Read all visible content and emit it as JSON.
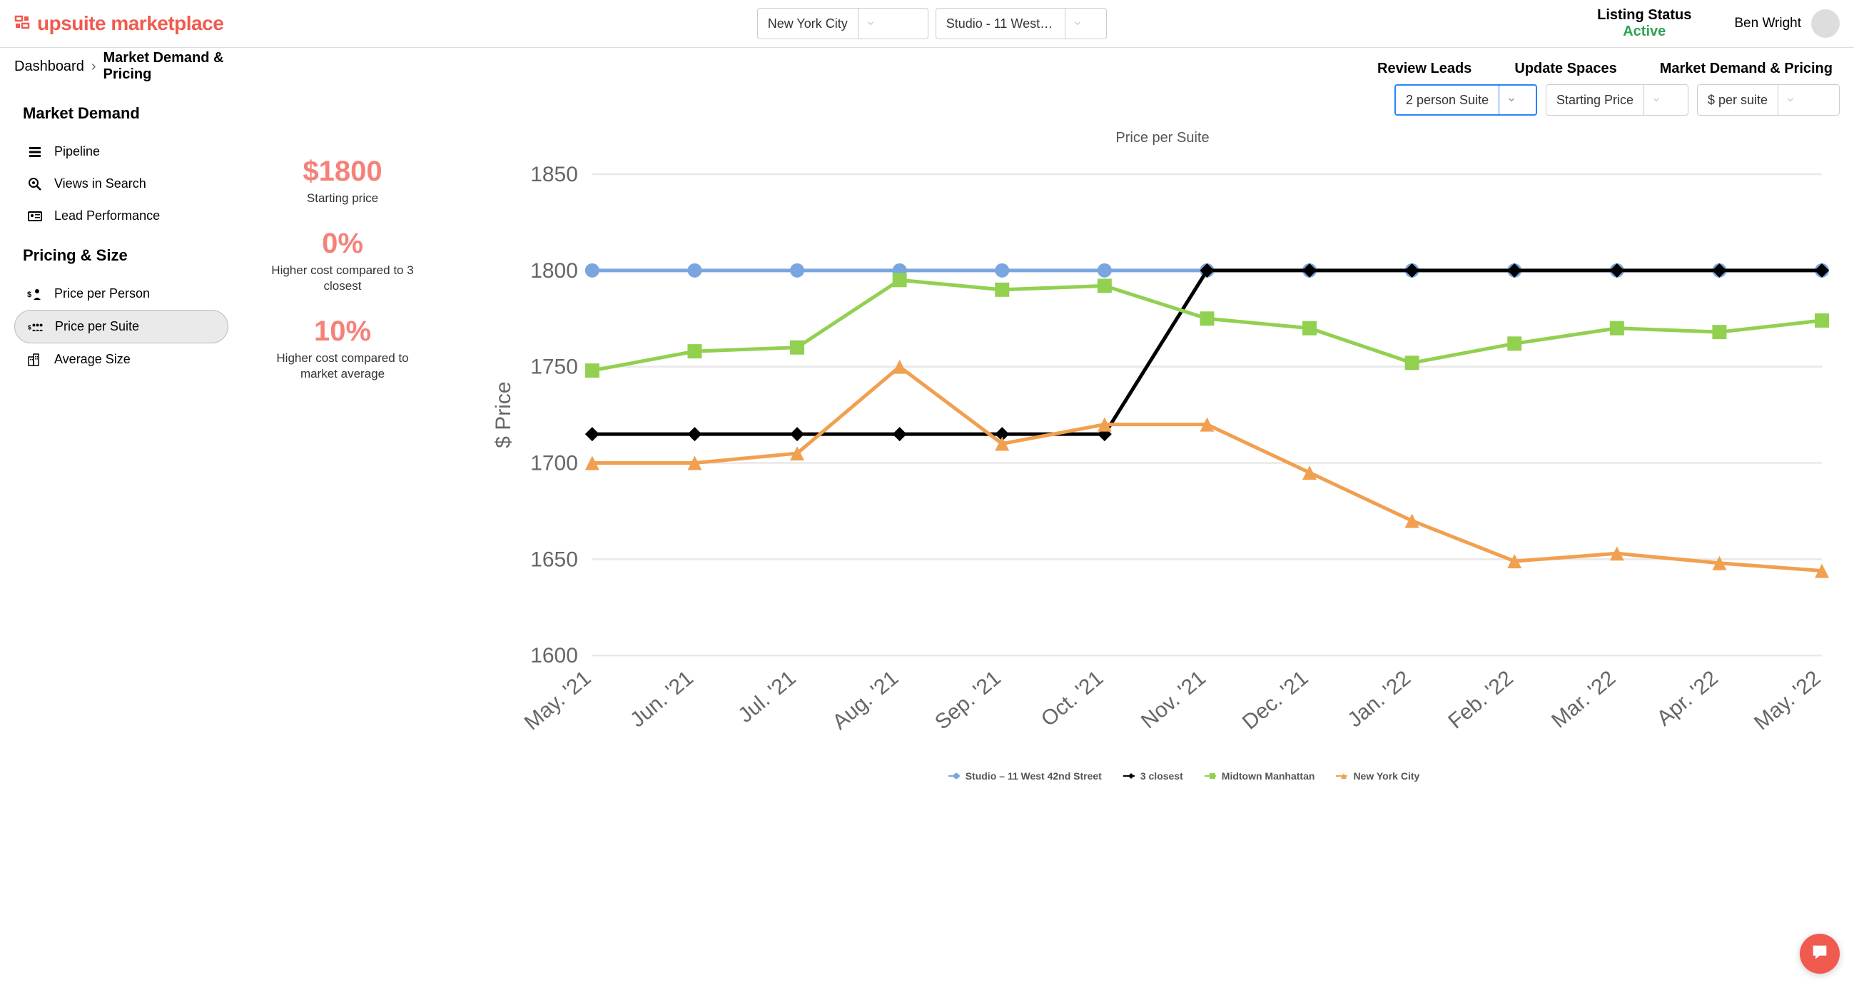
{
  "header": {
    "logo_text": "upsuite marketplace",
    "city_select": "New York City",
    "location_select": "Studio - 11 West 42n...",
    "listing_status_label": "Listing Status",
    "listing_status_value": "Active",
    "user_name": "Ben Wright"
  },
  "subnav": {
    "review_leads": "Review Leads",
    "update_spaces": "Update Spaces",
    "market_demand_pricing": "Market Demand & Pricing"
  },
  "breadcrumb": {
    "root": "Dashboard",
    "current": "Market Demand & Pricing"
  },
  "sidebar": {
    "section1_title": "Market Demand",
    "section1_items": [
      "Pipeline",
      "Views in Search",
      "Lead Performance"
    ],
    "section2_title": "Pricing & Size",
    "section2_items": [
      "Price per Person",
      "Price per Suite",
      "Average Size"
    ],
    "active_index": 1
  },
  "stats": [
    {
      "value": "$1800",
      "label": "Starting price"
    },
    {
      "value": "0%",
      "label": "Higher cost compared to 3 closest"
    },
    {
      "value": "10%",
      "label": "Higher cost compared to market average"
    }
  ],
  "chart_filters": {
    "suite_type": "2 person Suite",
    "price_type": "Starting Price",
    "unit": "$ per suite"
  },
  "chart": {
    "title": "Price per Suite",
    "type": "line",
    "y_axis_label": "$ Price",
    "ylim": [
      1600,
      1850
    ],
    "ytick_step": 50,
    "categories": [
      "May. '21",
      "Jun. '21",
      "Jul. '21",
      "Aug. '21",
      "Sep. '21",
      "Oct. '21",
      "Nov. '21",
      "Dec. '21",
      "Jan. '22",
      "Feb. '22",
      "Mar. '22",
      "Apr. '22",
      "May. '22"
    ],
    "grid_color": "#e8e8e8",
    "background_color": "#ffffff",
    "series": [
      {
        "name": "Studio – 11 West 42nd Street",
        "color": "#7aa6e0",
        "marker": "circle",
        "values": [
          1800,
          1800,
          1800,
          1800,
          1800,
          1800,
          1800,
          1800,
          1800,
          1800,
          1800,
          1800,
          1800
        ]
      },
      {
        "name": "3 closest",
        "color": "#000000",
        "marker": "diamond",
        "values": [
          1715,
          1715,
          1715,
          1715,
          1715,
          1715,
          1800,
          1800,
          1800,
          1800,
          1800,
          1800,
          1800
        ]
      },
      {
        "name": "Midtown Manhattan",
        "color": "#92d050",
        "marker": "square",
        "values": [
          1748,
          1758,
          1760,
          1795,
          1790,
          1792,
          1775,
          1770,
          1752,
          1762,
          1770,
          1768,
          1774
        ]
      },
      {
        "name": "New York City",
        "color": "#f0a050",
        "marker": "triangle",
        "values": [
          1700,
          1700,
          1705,
          1750,
          1710,
          1720,
          1720,
          1695,
          1670,
          1649,
          1653,
          1648,
          1644
        ]
      }
    ]
  }
}
